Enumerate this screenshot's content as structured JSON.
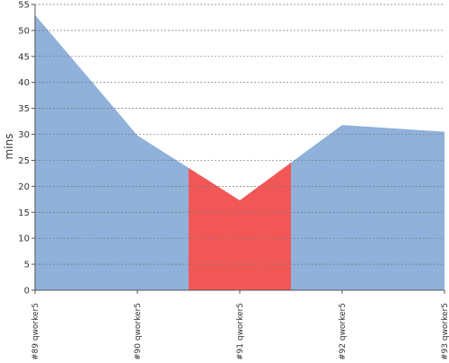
{
  "chart_data": {
    "type": "area",
    "y_label": "mins",
    "categories": [
      "#89 qworker5",
      "#90 qworker5",
      "#91 qworker5",
      "#92 qworker5",
      "#93 qworker5"
    ],
    "values": [
      53,
      29.8,
      17.3,
      31.8,
      30.5
    ],
    "point_colors": [
      "#8fb1da",
      "#8fb1da",
      "#f25757",
      "#8fb1da",
      "#8fb1da"
    ],
    "ylim": [
      0,
      55
    ],
    "yticks": [
      0,
      5,
      10,
      15,
      20,
      25,
      30,
      35,
      40,
      45,
      50,
      55
    ],
    "grid": true
  }
}
